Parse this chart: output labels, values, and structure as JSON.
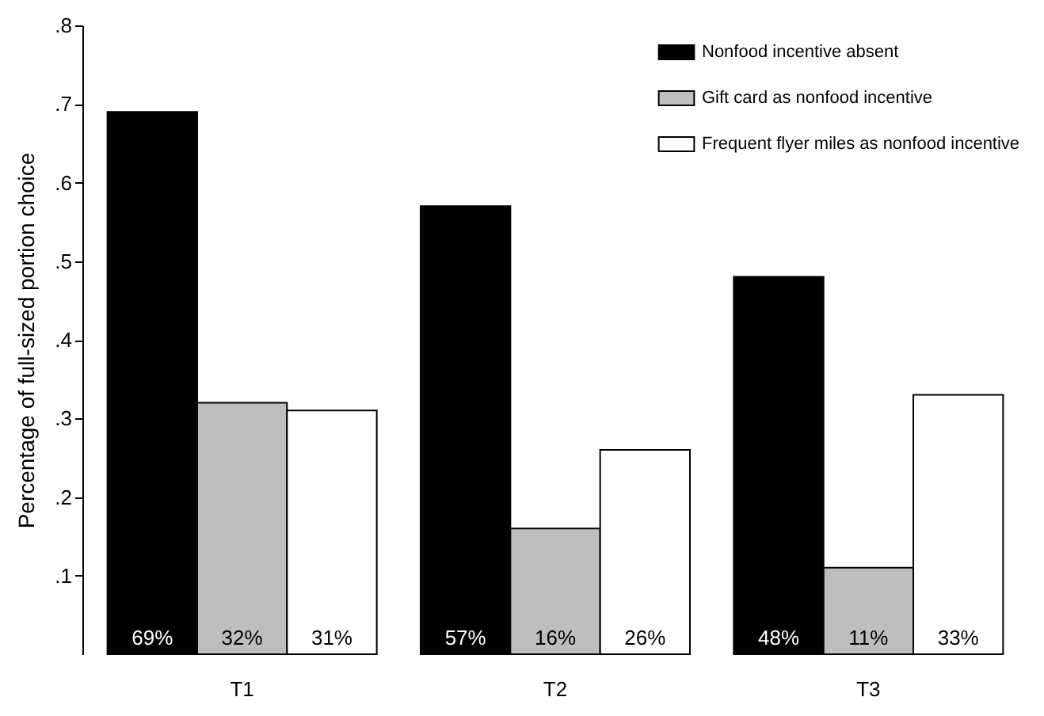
{
  "chart_data": {
    "type": "bar",
    "ylabel": "Percentage of full-sized portion choice",
    "categories": [
      "T1",
      "T2",
      "T3"
    ],
    "series": [
      {
        "name": "Nonfood incentive absent",
        "color": "#000000",
        "values": [
          0.69,
          0.57,
          0.48
        ],
        "value_labels": [
          "69%",
          "57%",
          "48%"
        ]
      },
      {
        "name": "Gift card as nonfood incentive",
        "color": "#bebebe",
        "values": [
          0.32,
          0.16,
          0.11
        ],
        "value_labels": [
          "32%",
          "16%",
          "11%"
        ]
      },
      {
        "name": "Frequent flyer miles as nonfood incentive",
        "color": "#ffffff",
        "values": [
          0.31,
          0.26,
          0.33
        ],
        "value_labels": [
          "31%",
          "26%",
          "33%"
        ]
      }
    ],
    "ylim": [
      0,
      0.8
    ],
    "yticks": [
      {
        "value": 0.1,
        "label": ".1"
      },
      {
        "value": 0.2,
        "label": ".2"
      },
      {
        "value": 0.3,
        "label": ".3"
      },
      {
        "value": 0.4,
        "label": ".4"
      },
      {
        "value": 0.5,
        "label": ".5"
      },
      {
        "value": 0.6,
        "label": ".6"
      },
      {
        "value": 0.7,
        "label": ".7"
      },
      {
        "value": 0.8,
        "label": ".8"
      }
    ],
    "legend": "top right",
    "grid": false
  }
}
